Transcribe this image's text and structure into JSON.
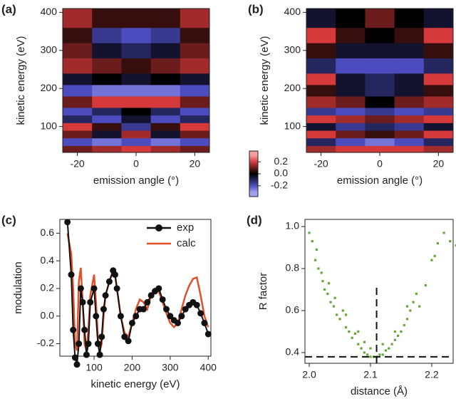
{
  "chart_data": [
    {
      "type": "heatmap",
      "panel": "(a)",
      "xlabel": "emission angle (°)",
      "ylabel": "kinetic energy (eV)",
      "xlim": [
        -25,
        25
      ],
      "ylim": [
        32,
        410
      ],
      "xticks": [
        -20,
        0,
        20
      ],
      "yticks": [
        100,
        200,
        300,
        400
      ],
      "xedges": [
        -25,
        -15,
        -5,
        5,
        15,
        25
      ],
      "yedges": [
        32,
        50,
        70,
        90,
        110,
        130,
        150,
        180,
        210,
        240,
        280,
        320,
        360,
        410
      ],
      "z": [
        [
          0.1,
          0.15,
          0.2,
          0.15,
          0.1
        ],
        [
          -0.2,
          -0.25,
          -0.2,
          -0.25,
          -0.2
        ],
        [
          0.1,
          -0.05,
          0.15,
          -0.05,
          0.1
        ],
        [
          0.2,
          0.05,
          -0.15,
          0.05,
          0.2
        ],
        [
          -0.1,
          -0.2,
          -0.05,
          -0.2,
          -0.1
        ],
        [
          -0.2,
          -0.1,
          0,
          -0.1,
          -0.2
        ],
        [
          0.1,
          0.2,
          0.2,
          0.2,
          0.1
        ],
        [
          -0.2,
          -0.25,
          -0.25,
          -0.25,
          -0.2
        ],
        [
          -0.05,
          0,
          -0.05,
          0,
          -0.05
        ],
        [
          0.15,
          0.1,
          0.05,
          0.1,
          0.15
        ],
        [
          0.1,
          -0.05,
          -0.1,
          -0.05,
          0.1
        ],
        [
          0.05,
          -0.15,
          -0.2,
          -0.15,
          0.05
        ],
        [
          0.15,
          0.05,
          0.05,
          0.05,
          0.15
        ]
      ]
    },
    {
      "type": "heatmap",
      "panel": "(b)",
      "xlabel": "emission angle (°)",
      "ylabel": "kinetic energy (eV)",
      "xlim": [
        -25,
        25
      ],
      "ylim": [
        32,
        410
      ],
      "xticks": [
        -20,
        0,
        20
      ],
      "yticks": [
        100,
        200,
        300,
        400
      ],
      "xedges": [
        -25,
        -15,
        -5,
        5,
        15,
        25
      ],
      "yedges": [
        32,
        50,
        70,
        90,
        110,
        130,
        150,
        180,
        210,
        240,
        280,
        320,
        360,
        410
      ],
      "z": [
        [
          0.15,
          0.2,
          0.2,
          0.2,
          0.15
        ],
        [
          -0.1,
          -0.2,
          -0.25,
          -0.2,
          -0.1
        ],
        [
          0.2,
          0.1,
          0.05,
          0.1,
          0.2
        ],
        [
          -0.05,
          -0.15,
          -0.1,
          -0.15,
          -0.05
        ],
        [
          0.2,
          0.15,
          0.1,
          0.15,
          0.2
        ],
        [
          -0.15,
          -0.2,
          -0.15,
          -0.2,
          -0.15
        ],
        [
          0.15,
          0.1,
          0,
          0.1,
          0.15
        ],
        [
          0.05,
          -0.05,
          -0.1,
          -0.05,
          0.05
        ],
        [
          0.2,
          -0.05,
          -0.1,
          -0.05,
          0.2
        ],
        [
          -0.1,
          -0.2,
          -0.2,
          -0.2,
          -0.1
        ],
        [
          0.05,
          -0.05,
          -0.05,
          -0.05,
          0.05
        ],
        [
          0.2,
          0.05,
          0,
          0.05,
          0.2
        ],
        [
          -0.05,
          0,
          0.1,
          0,
          -0.05
        ]
      ]
    },
    {
      "type": "colorbar",
      "ylim": [
        -0.38,
        0.38
      ],
      "yticks": [
        0.2,
        {
          "value": 0,
          "label": "0.0"
        },
        -0.2
      ]
    },
    {
      "type": "line",
      "panel": "(c)",
      "xlabel": "kinetic energy (eV)",
      "ylabel": "modulation",
      "xlim": [
        10,
        407
      ],
      "ylim": [
        -0.29,
        0.7
      ],
      "xticks": [
        100,
        200,
        300,
        400
      ],
      "yticks": [
        -0.2,
        {
          "value": 0,
          "label": "0.0"
        },
        0.2,
        0.4,
        0.6
      ],
      "x": [
        30,
        40,
        45,
        50,
        55,
        60,
        65,
        70,
        75,
        80,
        85,
        90,
        100,
        105,
        110,
        115,
        120,
        125,
        130,
        140,
        150,
        155,
        160,
        170,
        180,
        190,
        200,
        210,
        220,
        230,
        240,
        250,
        260,
        270,
        280,
        290,
        300,
        310,
        320,
        330,
        340,
        350,
        360,
        370,
        380,
        390,
        400
      ],
      "series": [
        {
          "name": "exp",
          "color": "#111111",
          "markers": true,
          "values": [
            0.68,
            0.3,
            -0.1,
            -0.3,
            -0.35,
            -0.2,
            0.2,
            0.1,
            -0.1,
            -0.28,
            -0.2,
            0.1,
            0.2,
            0,
            -0.2,
            -0.28,
            -0.15,
            0.05,
            0.15,
            0.25,
            0.33,
            0.3,
            0.2,
            0,
            -0.15,
            -0.18,
            -0.05,
            0,
            0.05,
            0.05,
            0.1,
            0.15,
            0.18,
            0.2,
            0.12,
            0.05,
            0,
            -0.03,
            -0.05,
            0,
            0.05,
            0.08,
            0.1,
            0.08,
            0.02,
            -0.05,
            -0.13
          ]
        },
        {
          "name": "calc",
          "color": "#e0502a",
          "markers": false,
          "values": [
            0.6,
            0.45,
            0.2,
            -0.2,
            -0.25,
            0.25,
            0.35,
            0.1,
            -0.2,
            -0.25,
            -0.1,
            0.15,
            0.3,
            0.1,
            -0.15,
            -0.25,
            -0.2,
            0,
            0.15,
            0.25,
            0.33,
            0.3,
            0.2,
            0,
            -0.12,
            -0.15,
            -0.05,
            0.05,
            0.12,
            0.1,
            0.05,
            0.15,
            0.2,
            0.18,
            0.1,
            0.02,
            -0.05,
            -0.08,
            -0.05,
            0.05,
            0.15,
            0.22,
            0.27,
            0.28,
            0.15,
            0,
            -0.08
          ]
        }
      ],
      "legend": "upper right"
    },
    {
      "type": "scatter",
      "panel": "(d)",
      "xlabel": "distance (Å)",
      "ylabel": "R factor",
      "color": "#6aa33a",
      "xlim": [
        1.993,
        2.235
      ],
      "ylim": [
        0.349,
        1.034
      ],
      "xticks": [
        {
          "value": 2,
          "label": "2.0"
        },
        2.1,
        2.2
      ],
      "yticks": [
        0.4,
        0.6,
        0.8,
        {
          "value": 1,
          "label": "1.0"
        }
      ],
      "reference_lines": {
        "x": 2.11,
        "y": 0.38
      },
      "x": [
        2.0,
        2.005,
        2.01,
        2.012,
        2.015,
        2.02,
        2.022,
        2.025,
        2.03,
        2.032,
        2.035,
        2.04,
        2.042,
        2.045,
        2.05,
        2.055,
        2.06,
        2.065,
        2.07,
        2.075,
        2.08,
        2.085,
        2.09,
        2.095,
        2.1,
        2.105,
        2.11,
        2.115,
        2.12,
        2.125,
        2.13,
        2.135,
        2.14,
        2.145,
        2.15,
        2.155,
        2.16,
        2.165,
        2.17,
        2.175,
        2.18,
        2.19,
        2.2,
        2.205,
        2.21,
        2.22,
        2.23,
        2.24,
        2.1,
        2.12,
        2.09,
        2.14,
        2.06,
        2.08,
        2.16
      ],
      "y": [
        0.97,
        0.93,
        0.84,
        0.89,
        0.8,
        0.78,
        0.74,
        0.7,
        0.68,
        0.73,
        0.64,
        0.62,
        0.66,
        0.58,
        0.56,
        0.6,
        0.52,
        0.5,
        0.47,
        0.49,
        0.44,
        0.42,
        0.4,
        0.39,
        0.38,
        0.38,
        0.38,
        0.39,
        0.39,
        0.41,
        0.42,
        0.44,
        0.46,
        0.48,
        0.5,
        0.53,
        0.56,
        0.6,
        0.64,
        0.68,
        0.62,
        0.72,
        0.84,
        0.86,
        0.92,
        0.97,
        0.93,
        0.91,
        0.42,
        0.44,
        0.45,
        0.5,
        0.58,
        0.5,
        0.62
      ]
    }
  ]
}
